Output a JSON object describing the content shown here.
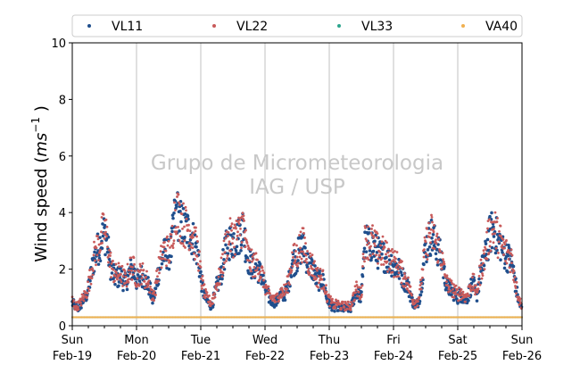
{
  "chart_data": {
    "type": "scatter",
    "title": "",
    "ylabel_main": "Wind speed (",
    "ylabel_unit": "ms",
    "ylabel_exp": "−1",
    "ylabel_close": " )",
    "ylim": [
      0,
      10
    ],
    "yticks": [
      "0",
      "2",
      "4",
      "6",
      "8",
      "10"
    ],
    "xlim": [
      "2017-02-19",
      "2017-02-26"
    ],
    "xtick_days": [
      "Sun",
      "Mon",
      "Tue",
      "Wed",
      "Thu",
      "Fri",
      "Sat",
      "Sun"
    ],
    "xtick_dates": [
      "Feb-19",
      "Feb-20",
      "Feb-21",
      "Feb-22",
      "Feb-23",
      "Feb-24",
      "Feb-25",
      "Feb-26"
    ],
    "grid": "vertical at day ticks",
    "legend_position": "top, above plot",
    "watermark": [
      "Grupo de Micrometeorologia",
      "IAG / USP"
    ],
    "series": [
      {
        "name": "VL11",
        "color": "#1f4e8c",
        "marker": "dot",
        "hourly_mean": [
          0.8,
          0.7,
          0.6,
          0.7,
          0.9,
          1.0,
          1.3,
          1.8,
          2.3,
          2.6,
          2.8,
          3.1,
          3.3,
          3.0,
          2.2,
          1.9,
          1.7,
          1.7,
          1.8,
          1.6,
          1.5,
          1.8,
          2.0,
          1.9,
          1.6,
          1.7,
          1.8,
          1.6,
          1.5,
          1.3,
          0.9,
          1.2,
          1.8,
          2.2,
          2.5,
          2.6,
          2.5,
          2.7,
          3.7,
          4.1,
          3.7,
          3.6,
          3.4,
          3.4,
          3.3,
          3.1,
          2.8,
          2.5,
          1.7,
          1.2,
          0.9,
          0.8,
          0.7,
          1.0,
          1.4,
          1.6,
          2.0,
          2.6,
          2.9,
          3.0,
          3.0,
          3.1,
          3.1,
          3.4,
          3.5,
          2.6,
          2.3,
          2.1,
          2.1,
          2.0,
          1.9,
          1.7,
          1.3,
          1.1,
          0.9,
          0.9,
          0.8,
          1.0,
          1.1,
          1.1,
          1.2,
          1.6,
          2.2,
          2.3,
          2.4,
          2.7,
          2.8,
          2.6,
          2.2,
          2.1,
          2.0,
          1.7,
          1.6,
          1.6,
          1.5,
          1.0,
          0.8,
          0.7,
          0.6,
          0.7,
          0.6,
          0.6,
          0.6,
          0.6,
          0.6,
          0.9,
          1.2,
          1.1,
          1.0,
          2.8,
          3.0,
          2.8,
          2.9,
          2.7,
          2.6,
          2.5,
          2.5,
          2.4,
          2.3,
          2.3,
          2.1,
          2.1,
          2.0,
          1.8,
          1.6,
          1.5,
          1.2,
          0.9,
          0.7,
          0.8,
          1.1,
          2.0,
          2.7,
          3.0,
          3.2,
          3.0,
          2.8,
          2.6,
          2.3,
          1.8,
          1.4,
          1.3,
          1.2,
          1.1,
          1.0,
          1.1,
          1.0,
          0.9,
          1.1,
          1.4,
          1.4,
          1.0,
          1.6,
          2.0,
          2.3,
          2.8,
          3.2,
          3.4,
          3.3,
          3.0,
          2.9,
          2.6,
          2.5,
          2.4,
          2.3,
          1.8,
          1.2,
          0.8,
          0.6
        ]
      },
      {
        "name": "VL22",
        "color": "#c85a5a",
        "marker": "dot",
        "hourly_mean": [
          0.9,
          0.7,
          0.7,
          0.8,
          1.0,
          1.1,
          1.4,
          1.9,
          2.4,
          2.7,
          2.9,
          3.2,
          3.4,
          3.1,
          2.3,
          2.0,
          1.8,
          1.8,
          1.9,
          1.7,
          1.6,
          1.9,
          2.1,
          2.0,
          1.7,
          1.8,
          1.9,
          1.7,
          1.6,
          1.4,
          1.0,
          1.3,
          1.9,
          2.3,
          2.6,
          2.7,
          2.6,
          2.8,
          3.8,
          4.2,
          3.8,
          3.7,
          3.5,
          3.5,
          3.4,
          3.2,
          2.9,
          2.6,
          1.8,
          1.3,
          1.0,
          0.9,
          0.8,
          1.1,
          1.5,
          1.7,
          2.1,
          2.7,
          3.0,
          3.1,
          3.1,
          3.2,
          3.2,
          3.5,
          3.6,
          2.7,
          2.4,
          2.2,
          2.2,
          2.1,
          2.0,
          1.8,
          1.4,
          1.2,
          1.0,
          1.0,
          0.9,
          1.1,
          1.2,
          1.2,
          1.3,
          1.7,
          2.3,
          2.4,
          2.5,
          2.8,
          2.9,
          2.7,
          2.3,
          2.2,
          2.1,
          1.8,
          1.7,
          1.7,
          1.6,
          1.1,
          0.9,
          0.8,
          0.7,
          0.8,
          0.7,
          0.7,
          0.7,
          0.7,
          0.7,
          1.0,
          1.3,
          1.2,
          1.1,
          2.9,
          3.1,
          2.9,
          3.0,
          2.8,
          2.7,
          2.6,
          2.6,
          2.5,
          2.4,
          2.4,
          2.2,
          2.2,
          2.1,
          1.9,
          1.7,
          1.6,
          1.3,
          1.0,
          0.8,
          0.9,
          1.2,
          2.1,
          2.8,
          3.1,
          3.3,
          3.1,
          2.9,
          2.7,
          2.4,
          1.9,
          1.5,
          1.4,
          1.3,
          1.2,
          1.1,
          1.2,
          1.1,
          1.0,
          1.2,
          1.5,
          1.5,
          1.1,
          1.7,
          2.1,
          2.4,
          2.9,
          3.3,
          3.5,
          3.4,
          3.1,
          3.0,
          2.7,
          2.6,
          2.5,
          2.4,
          1.9,
          1.3,
          0.9,
          0.7
        ]
      },
      {
        "name": "VL33",
        "color": "#2ca58d",
        "marker": "dot",
        "constant": 0.3
      },
      {
        "name": "VA40",
        "color": "#f0b050",
        "marker": "dot",
        "constant": 0.3
      }
    ]
  }
}
